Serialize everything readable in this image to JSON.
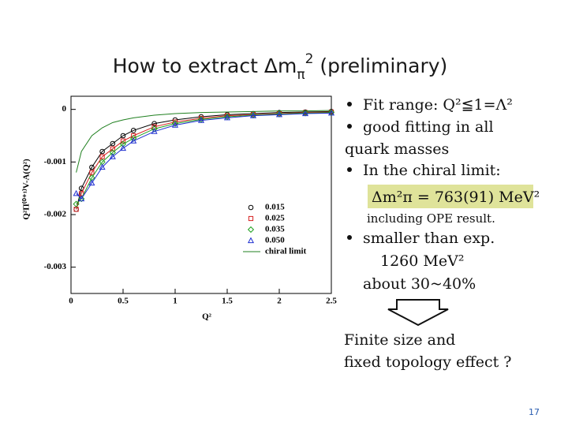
{
  "slide": {
    "title_main": "How to extract Δm",
    "title_sub": "π",
    "title_sup": "2",
    "title_rest": " (preliminary)",
    "bullets": [
      "Fit range: Q²≦1=Λ²",
      "good fitting in all",
      "quark masses",
      "In the chiral limit:"
    ],
    "formula": "Δm²π = 763(91) MeV²",
    "formula_note": "including OPE result.",
    "bullet_exp": "smaller than exp.",
    "exp_value": "1260 MeV²",
    "exp_ratio": "about 30~40%",
    "conclusion": [
      "Finite size and",
      "fixed topology effect ?"
    ],
    "page_number": "17"
  },
  "chart_data": {
    "type": "line",
    "x_label": "Q²",
    "y_label": "Q²Π⁽⁰⁺¹⁾V-A(Q²)",
    "x": [
      0.05,
      0.1,
      0.2,
      0.3,
      0.4,
      0.5,
      0.6,
      0.8,
      1.0,
      1.25,
      1.5,
      1.75,
      2.0,
      2.25,
      2.5
    ],
    "xlim": [
      0,
      2.5
    ],
    "xticks": [
      0,
      0.5,
      1,
      1.5,
      2,
      2.5
    ],
    "ylim": [
      -0.0035,
      0.00025
    ],
    "yticks": [
      0,
      -0.001,
      -0.002,
      -0.003
    ],
    "series": [
      {
        "name": "0.015",
        "color": "#000000",
        "marker": "circle",
        "values": [
          -0.0019,
          -0.0015,
          -0.0011,
          -0.0008,
          -0.00065,
          -0.0005,
          -0.0004,
          -0.00027,
          -0.0002,
          -0.00014,
          -0.0001,
          -8e-05,
          -6e-05,
          -5e-05,
          -4e-05
        ]
      },
      {
        "name": "0.025",
        "color": "#d62020",
        "marker": "square",
        "values": [
          -0.0019,
          -0.0016,
          -0.0012,
          -0.0009,
          -0.00075,
          -0.0006,
          -0.0005,
          -0.00033,
          -0.00024,
          -0.00017,
          -0.00012,
          -0.0001,
          -8e-05,
          -6e-05,
          -5e-05
        ]
      },
      {
        "name": "0.035",
        "color": "#20a020",
        "marker": "diamond",
        "values": [
          -0.0018,
          -0.0017,
          -0.0013,
          -0.001,
          -0.00082,
          -0.00066,
          -0.00055,
          -0.00037,
          -0.00027,
          -0.00019,
          -0.00014,
          -0.00011,
          -9e-05,
          -7e-05,
          -6e-05
        ]
      },
      {
        "name": "0.050",
        "color": "#2030d0",
        "marker": "triangle",
        "values": [
          -0.0016,
          -0.0017,
          -0.0014,
          -0.0011,
          -0.0009,
          -0.00074,
          -0.0006,
          -0.00042,
          -0.0003,
          -0.00021,
          -0.00016,
          -0.00012,
          -0.0001,
          -8e-05,
          -7e-05
        ]
      },
      {
        "name": "chiral limit",
        "color": "#208020",
        "marker": "none",
        "values": [
          -0.0012,
          -0.0008,
          -0.0005,
          -0.00035,
          -0.00025,
          -0.0002,
          -0.00016,
          -0.00011,
          -8e-05,
          -6e-05,
          -5e-05,
          -4e-05,
          -3e-05,
          -3e-05,
          -2e-05
        ]
      }
    ]
  }
}
